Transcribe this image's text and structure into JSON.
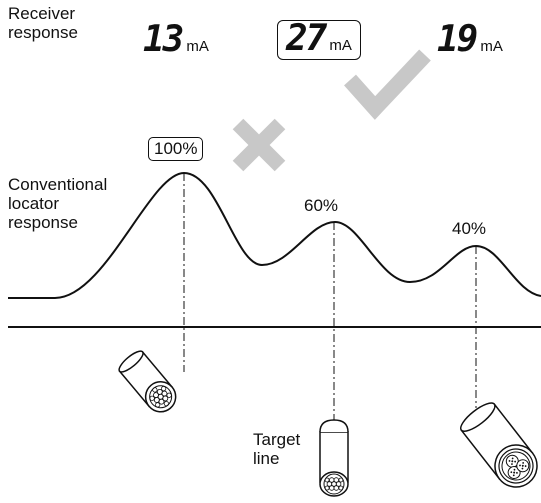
{
  "receiver": {
    "label": "Receiver\nresponse",
    "readings": [
      {
        "value": "13",
        "unit": "mA"
      },
      {
        "value": "27",
        "unit": "mA",
        "highlighted": true
      },
      {
        "value": "19",
        "unit": "mA"
      }
    ]
  },
  "locator": {
    "label": "Conventional\nlocator\nresponse",
    "peaks": [
      {
        "percent": "100%",
        "boxed": true
      },
      {
        "percent": "60%"
      },
      {
        "percent": "40%"
      }
    ]
  },
  "cables": [
    {
      "name": "multi-strand cable"
    },
    {
      "name": "target cable",
      "label": "Target\nline"
    },
    {
      "name": "three-core cable"
    }
  ],
  "marks": {
    "check": "check-icon",
    "cross": "cross-icon",
    "mark_color": "#c8c8c8"
  }
}
